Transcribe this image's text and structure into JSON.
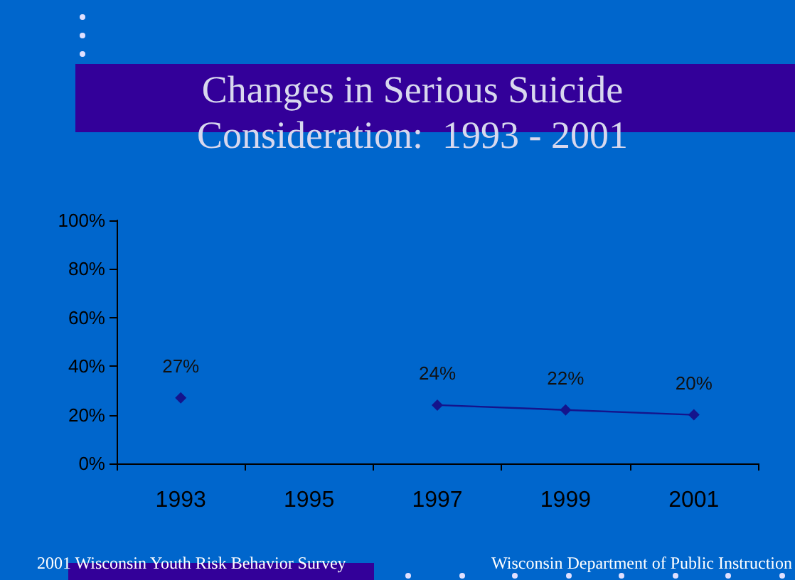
{
  "chart_data": {
    "type": "line",
    "title": "Changes in Serious Suicide\nConsideration:  1993 - 2001",
    "categories": [
      "1993",
      "1995",
      "1997",
      "1999",
      "2001"
    ],
    "series": [
      {
        "color": "#14148c",
        "values": [
          27,
          null,
          24,
          22,
          20
        ],
        "value_labels": [
          "27%",
          null,
          "24%",
          "22%",
          "20%"
        ]
      }
    ],
    "ylim": [
      0,
      100
    ],
    "yticks": [
      {
        "value": 0,
        "label": "0%"
      },
      {
        "value": 20,
        "label": "20%"
      },
      {
        "value": 40,
        "label": "40%"
      },
      {
        "value": 60,
        "label": "60%"
      },
      {
        "value": 80,
        "label": "80%"
      },
      {
        "value": 100,
        "label": "100%"
      }
    ],
    "grid": false,
    "marker": "diamond",
    "line_style": "solid",
    "annotations": [
      "2001 Wisconsin Youth Risk Behavior Survey",
      "Wisconsin Department of Public Instruction"
    ]
  }
}
